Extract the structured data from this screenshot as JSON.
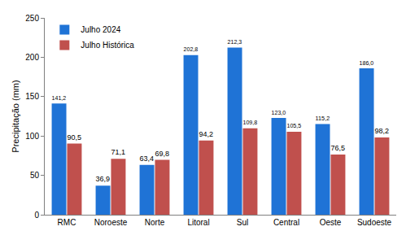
{
  "chart_data": {
    "type": "bar",
    "y_label": "Precipitação (mm)",
    "categories": [
      "RMC",
      "Noroeste",
      "Norte",
      "Litoral",
      "Sul",
      "Central",
      "Oeste",
      "Sudoeste"
    ],
    "series": [
      {
        "name": "Julho 2024",
        "color": "#1f73d6",
        "values": [
          141.2,
          36.9,
          63.4,
          202.8,
          212.3,
          123.0,
          115.2,
          186.0
        ],
        "value_labels": [
          "141,2",
          "36,9",
          "63,4",
          "202,8",
          "212,3",
          "123,0",
          "115,2",
          "186,0"
        ]
      },
      {
        "name": "Julho Histórica",
        "color": "#c0504d",
        "values": [
          90.5,
          71.1,
          69.8,
          94.2,
          109.8,
          105.5,
          76.5,
          98.2
        ],
        "value_labels": [
          "90,5",
          "71,1",
          "69,8",
          "94,2",
          "109,8",
          "105,5",
          "76,5",
          "98,2"
        ]
      }
    ],
    "ylim": [
      0,
      250
    ],
    "yticks": [
      0,
      50,
      100,
      150,
      200,
      250
    ],
    "grid": false,
    "legend": "upper left",
    "data_labels": true
  }
}
